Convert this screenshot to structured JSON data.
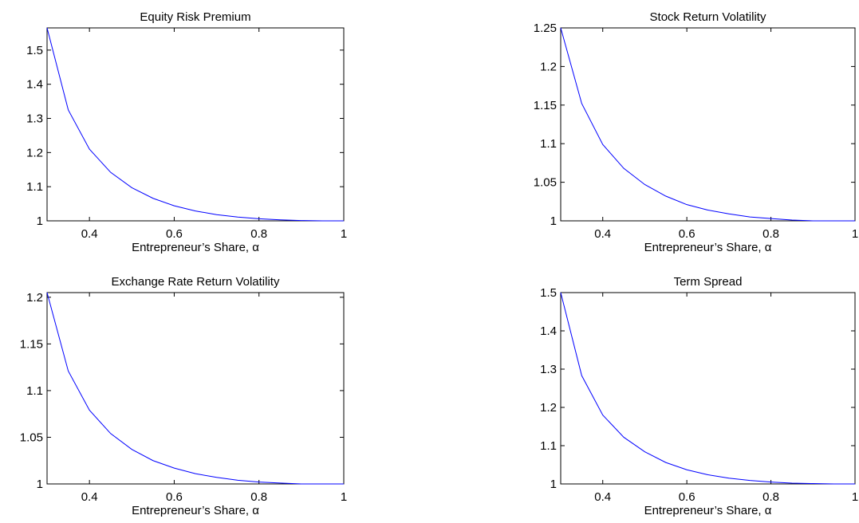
{
  "chart_data": [
    {
      "type": "line",
      "title": "Equity Risk Premium",
      "xlabel": "Entrepreneur’s Share, α",
      "ylabel": "",
      "xlim": [
        0.3,
        1
      ],
      "ylim": [
        1,
        1.565
      ],
      "xticks": [
        0.4,
        0.6,
        0.8,
        1
      ],
      "xtick_labels": [
        "0.4",
        "0.6",
        "0.8",
        "1"
      ],
      "yticks": [
        1,
        1.1,
        1.2,
        1.3,
        1.4,
        1.5
      ],
      "ytick_labels": [
        "1",
        "1.1",
        "1.2",
        "1.3",
        "1.4",
        "1.5"
      ],
      "grid": false,
      "color": "#0000ff",
      "x": [
        0.3,
        0.35,
        0.4,
        0.45,
        0.5,
        0.55,
        0.6,
        0.65,
        0.7,
        0.75,
        0.8,
        0.85,
        0.9,
        0.95,
        1.0
      ],
      "y": [
        1.565,
        1.325,
        1.21,
        1.142,
        1.097,
        1.066,
        1.044,
        1.029,
        1.018,
        1.011,
        1.006,
        1.003,
        1.001,
        1.0,
        1.0
      ]
    },
    {
      "type": "line",
      "title": "Stock Return Volatility",
      "xlabel": "Entrepreneur’s Share, α",
      "ylabel": "",
      "xlim": [
        0.3,
        1
      ],
      "ylim": [
        1,
        1.25
      ],
      "xticks": [
        0.4,
        0.6,
        0.8,
        1
      ],
      "xtick_labels": [
        "0.4",
        "0.6",
        "0.8",
        "1"
      ],
      "yticks": [
        1,
        1.05,
        1.1,
        1.15,
        1.2,
        1.25
      ],
      "ytick_labels": [
        "1",
        "1.05",
        "1.1",
        "1.15",
        "1.2",
        "1.25"
      ],
      "grid": false,
      "color": "#0000ff",
      "x": [
        0.3,
        0.35,
        0.4,
        0.45,
        0.5,
        0.55,
        0.6,
        0.65,
        0.7,
        0.75,
        0.8,
        0.85,
        0.9,
        0.95,
        1.0
      ],
      "y": [
        1.25,
        1.152,
        1.099,
        1.068,
        1.047,
        1.032,
        1.021,
        1.014,
        1.009,
        1.005,
        1.003,
        1.001,
        1.0,
        1.0,
        1.0
      ]
    },
    {
      "type": "line",
      "title": "Exchange Rate Return Volatility",
      "xlabel": "Entrepreneur’s Share, α",
      "ylabel": "",
      "xlim": [
        0.3,
        1
      ],
      "ylim": [
        1,
        1.205
      ],
      "xticks": [
        0.4,
        0.6,
        0.8,
        1
      ],
      "xtick_labels": [
        "0.4",
        "0.6",
        "0.8",
        "1"
      ],
      "yticks": [
        1,
        1.05,
        1.1,
        1.15,
        1.2
      ],
      "ytick_labels": [
        "1",
        "1.05",
        "1.1",
        "1.15",
        "1.2"
      ],
      "grid": false,
      "color": "#0000ff",
      "x": [
        0.3,
        0.35,
        0.4,
        0.45,
        0.5,
        0.55,
        0.6,
        0.65,
        0.7,
        0.75,
        0.8,
        0.85,
        0.9,
        0.95,
        1.0
      ],
      "y": [
        1.205,
        1.121,
        1.079,
        1.054,
        1.037,
        1.025,
        1.017,
        1.011,
        1.007,
        1.004,
        1.002,
        1.001,
        1.0,
        1.0,
        1.0
      ]
    },
    {
      "type": "line",
      "title": "Term Spread",
      "xlabel": "Entrepreneur’s Share, α",
      "ylabel": "",
      "xlim": [
        0.3,
        1
      ],
      "ylim": [
        1,
        1.5
      ],
      "xticks": [
        0.4,
        0.6,
        0.8,
        1
      ],
      "xtick_labels": [
        "0.4",
        "0.6",
        "0.8",
        "1"
      ],
      "yticks": [
        1,
        1.1,
        1.2,
        1.3,
        1.4,
        1.5
      ],
      "ytick_labels": [
        "1",
        "1.1",
        "1.2",
        "1.3",
        "1.4",
        "1.5"
      ],
      "grid": false,
      "color": "#0000ff",
      "x": [
        0.3,
        0.35,
        0.4,
        0.45,
        0.5,
        0.55,
        0.6,
        0.65,
        0.7,
        0.75,
        0.8,
        0.85,
        0.9,
        0.95,
        1.0
      ],
      "y": [
        1.5,
        1.283,
        1.18,
        1.122,
        1.084,
        1.056,
        1.037,
        1.024,
        1.015,
        1.009,
        1.005,
        1.002,
        1.001,
        1.0,
        1.0
      ]
    }
  ]
}
